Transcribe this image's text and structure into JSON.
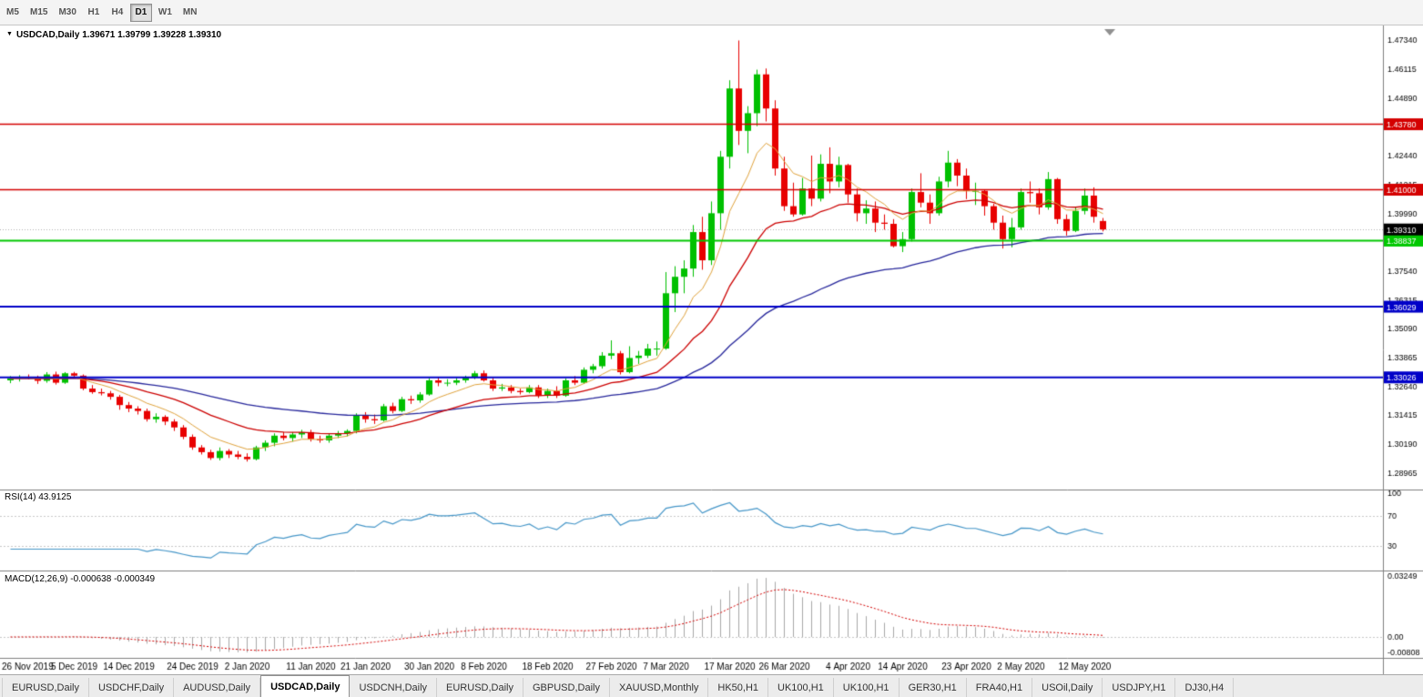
{
  "toolbar": {
    "timeframes": [
      {
        "label": "M5",
        "active": false
      },
      {
        "label": "M15",
        "active": false
      },
      {
        "label": "M30",
        "active": false
      },
      {
        "label": "H1",
        "active": false
      },
      {
        "label": "H4",
        "active": false
      },
      {
        "label": "D1",
        "active": true
      },
      {
        "label": "W1",
        "active": false
      },
      {
        "label": "MN",
        "active": false
      }
    ]
  },
  "chart": {
    "symbol_title": "USDCAD,Daily",
    "ohlc_display": "1.39671 1.39799 1.39228 1.39310"
  },
  "indicators": {
    "rsi_label": "RSI(14) 43.9125",
    "macd_label": "MACD(12,26,9) -0.000638 -0.000349"
  },
  "tabs": {
    "items": [
      {
        "label": "EURUSD,Daily",
        "active": false
      },
      {
        "label": "USDCHF,Daily",
        "active": false
      },
      {
        "label": "AUDUSD,Daily",
        "active": false
      },
      {
        "label": "USDCAD,Daily",
        "active": true
      },
      {
        "label": "USDCNH,Daily",
        "active": false
      },
      {
        "label": "EURUSD,Daily",
        "active": false
      },
      {
        "label": "GBPUSD,Daily",
        "active": false
      },
      {
        "label": "XAUUSD,Monthly",
        "active": false
      },
      {
        "label": "HK50,H1",
        "active": false
      },
      {
        "label": "UK100,H1",
        "active": false
      },
      {
        "label": "UK100,H1",
        "active": false
      },
      {
        "label": "GER30,H1",
        "active": false
      },
      {
        "label": "FRA40,H1",
        "active": false
      },
      {
        "label": "USOil,Daily",
        "active": false
      },
      {
        "label": "USDJPY,H1",
        "active": false
      },
      {
        "label": "DJ30,H4",
        "active": false
      }
    ]
  },
  "chart_data": {
    "type": "candlestick",
    "symbol": "USDCAD",
    "timeframe": "Daily",
    "ylim": [
      1.283,
      1.479
    ],
    "current_bar": {
      "open": 1.39671,
      "high": 1.39799,
      "low": 1.39228,
      "close": 1.3931
    },
    "current_price": {
      "value": 1.3931,
      "label": "1.39310",
      "bg": "#000000"
    },
    "price_ticks": [
      "1.47340",
      "1.46115",
      "1.44890",
      "1.43665",
      "1.42440",
      "1.41215",
      "1.39990",
      "1.38765",
      "1.37540",
      "1.36315",
      "1.35090",
      "1.33865",
      "1.32640",
      "1.31415",
      "1.30190",
      "1.28965"
    ],
    "hlines": [
      {
        "price": 1.4378,
        "label": "1.43780",
        "color": "#d40000",
        "width": 1.5
      },
      {
        "price": 1.41,
        "label": "1.41000",
        "color": "#d40000",
        "width": 1.5
      },
      {
        "price": 1.38837,
        "label": "1.38837",
        "color": "#00c800",
        "width": 2
      },
      {
        "price": 1.36029,
        "label": "1.36029",
        "color": "#0000c8",
        "width": 2
      },
      {
        "price": 1.33026,
        "label": "1.33026",
        "color": "#0000c8",
        "width": 2
      }
    ],
    "colors": {
      "up": "#00c000",
      "down": "#e80000",
      "ma_fast": "#e0a33c",
      "ma_med": "#cc0000",
      "ma_slow": "#26269b",
      "rsi": "#4596c8",
      "rsi_level": "#c8c8c8",
      "macd_hist": "#a8a8a8",
      "macd_signal": "#d40000",
      "axis_line": "#808080",
      "bid_line": "#b0b0b0"
    },
    "x_labels": [
      {
        "text": "26 Nov 2019",
        "i": 0
      },
      {
        "text": "5 Dec 2019",
        "i": 7
      },
      {
        "text": "14 Dec 2019",
        "i": 13
      },
      {
        "text": "24 Dec 2019",
        "i": 20
      },
      {
        "text": "2 Jan 2020",
        "i": 26
      },
      {
        "text": "11 Jan 2020",
        "i": 33
      },
      {
        "text": "21 Jan 2020",
        "i": 39
      },
      {
        "text": "30 Jan 2020",
        "i": 46
      },
      {
        "text": "8 Feb 2020",
        "i": 52
      },
      {
        "text": "18 Feb 2020",
        "i": 59
      },
      {
        "text": "27 Feb 2020",
        "i": 66
      },
      {
        "text": "7 Mar 2020",
        "i": 72
      },
      {
        "text": "17 Mar 2020",
        "i": 79
      },
      {
        "text": "26 Mar 2020",
        "i": 85
      },
      {
        "text": "4 Apr 2020",
        "i": 92
      },
      {
        "text": "14 Apr 2020",
        "i": 98
      },
      {
        "text": "23 Apr 2020",
        "i": 105
      },
      {
        "text": "2 May 2020",
        "i": 111
      },
      {
        "text": "12 May 2020",
        "i": 118
      }
    ],
    "rsi_panel": {
      "value": 43.9125,
      "levels": [
        {
          "text": "100",
          "v": 100
        },
        {
          "text": "70",
          "v": 70
        },
        {
          "text": "30",
          "v": 30
        }
      ],
      "dashed": [
        70,
        30
      ]
    },
    "macd_panel": {
      "macd_value": -0.000638,
      "signal_value": -0.000349,
      "scale": [
        {
          "text": "0.03249",
          "v": 0.03249
        },
        {
          "text": "0.00",
          "v": 0
        },
        {
          "text": "-0.00808",
          "v": -0.00808
        }
      ]
    },
    "candles": [
      [
        1.329,
        1.3308,
        1.3278,
        1.3298
      ],
      [
        1.3298,
        1.3312,
        1.3285,
        1.3305
      ],
      [
        1.3305,
        1.3315,
        1.3295,
        1.3302
      ],
      [
        1.3302,
        1.331,
        1.3275,
        1.3288
      ],
      [
        1.3288,
        1.3325,
        1.328,
        1.3315
      ],
      [
        1.3315,
        1.3327,
        1.3272,
        1.328
      ],
      [
        1.328,
        1.3325,
        1.3275,
        1.332
      ],
      [
        1.332,
        1.3326,
        1.3302,
        1.331
      ],
      [
        1.331,
        1.3315,
        1.3248,
        1.3255
      ],
      [
        1.3255,
        1.327,
        1.3233,
        1.324
      ],
      [
        1.324,
        1.3255,
        1.3226,
        1.3235
      ],
      [
        1.3235,
        1.3245,
        1.3208,
        1.322
      ],
      [
        1.322,
        1.3228,
        1.3165,
        1.3185
      ],
      [
        1.3185,
        1.3198,
        1.3155,
        1.317
      ],
      [
        1.317,
        1.318,
        1.3145,
        1.316
      ],
      [
        1.316,
        1.317,
        1.3115,
        1.3125
      ],
      [
        1.3125,
        1.315,
        1.311,
        1.3135
      ],
      [
        1.3135,
        1.3142,
        1.31,
        1.3115
      ],
      [
        1.3115,
        1.3125,
        1.3075,
        1.309
      ],
      [
        1.309,
        1.31,
        1.304,
        1.305
      ],
      [
        1.305,
        1.306,
        1.2995,
        1.3005
      ],
      [
        1.3005,
        1.3015,
        1.2975,
        1.2985
      ],
      [
        1.2985,
        1.2995,
        1.2952,
        1.296
      ],
      [
        1.296,
        1.3005,
        1.295,
        1.299
      ],
      [
        1.299,
        1.2998,
        1.296,
        1.2975
      ],
      [
        1.2975,
        1.299,
        1.2955,
        1.2965
      ],
      [
        1.2965,
        1.298,
        1.2945,
        1.2955
      ],
      [
        1.2955,
        1.3012,
        1.295,
        1.3005
      ],
      [
        1.3005,
        1.3035,
        1.299,
        1.3025
      ],
      [
        1.3025,
        1.3065,
        1.301,
        1.3055
      ],
      [
        1.3055,
        1.307,
        1.3035,
        1.3045
      ],
      [
        1.3045,
        1.307,
        1.303,
        1.306
      ],
      [
        1.306,
        1.308,
        1.3045,
        1.307
      ],
      [
        1.307,
        1.308,
        1.303,
        1.304
      ],
      [
        1.304,
        1.3055,
        1.3025,
        1.3035
      ],
      [
        1.3035,
        1.3065,
        1.3025,
        1.3055
      ],
      [
        1.3055,
        1.3075,
        1.3045,
        1.3065
      ],
      [
        1.3065,
        1.3082,
        1.3052,
        1.3075
      ],
      [
        1.3075,
        1.315,
        1.3065,
        1.314
      ],
      [
        1.314,
        1.3155,
        1.311,
        1.3125
      ],
      [
        1.3125,
        1.3145,
        1.3105,
        1.312
      ],
      [
        1.312,
        1.319,
        1.3115,
        1.318
      ],
      [
        1.318,
        1.3195,
        1.315,
        1.316
      ],
      [
        1.316,
        1.322,
        1.3155,
        1.321
      ],
      [
        1.321,
        1.3225,
        1.319,
        1.3205
      ],
      [
        1.3205,
        1.324,
        1.3195,
        1.323
      ],
      [
        1.323,
        1.33,
        1.3225,
        1.329
      ],
      [
        1.329,
        1.3304,
        1.3265,
        1.328
      ],
      [
        1.328,
        1.3295,
        1.3265,
        1.328
      ],
      [
        1.328,
        1.33,
        1.327,
        1.329
      ],
      [
        1.329,
        1.331,
        1.328,
        1.3305
      ],
      [
        1.3305,
        1.333,
        1.3295,
        1.332
      ],
      [
        1.332,
        1.3332,
        1.3285,
        1.329
      ],
      [
        1.329,
        1.33,
        1.3245,
        1.3255
      ],
      [
        1.3255,
        1.3275,
        1.3245,
        1.326
      ],
      [
        1.326,
        1.327,
        1.3235,
        1.3245
      ],
      [
        1.3245,
        1.3255,
        1.323,
        1.324
      ],
      [
        1.324,
        1.327,
        1.3235,
        1.326
      ],
      [
        1.326,
        1.327,
        1.3215,
        1.3225
      ],
      [
        1.3225,
        1.3255,
        1.3215,
        1.3245
      ],
      [
        1.3245,
        1.3265,
        1.3215,
        1.3225
      ],
      [
        1.3225,
        1.3298,
        1.322,
        1.329
      ],
      [
        1.329,
        1.3308,
        1.327,
        1.328
      ],
      [
        1.328,
        1.3345,
        1.3275,
        1.3335
      ],
      [
        1.3335,
        1.336,
        1.332,
        1.335
      ],
      [
        1.335,
        1.341,
        1.334,
        1.3395
      ],
      [
        1.3395,
        1.346,
        1.338,
        1.3405
      ],
      [
        1.3405,
        1.3415,
        1.3315,
        1.3325
      ],
      [
        1.3325,
        1.3435,
        1.332,
        1.3385
      ],
      [
        1.3385,
        1.3415,
        1.336,
        1.3395
      ],
      [
        1.3395,
        1.3445,
        1.3385,
        1.3425
      ],
      [
        1.3425,
        1.3455,
        1.3395,
        1.3425
      ],
      [
        1.3425,
        1.375,
        1.342,
        1.366
      ],
      [
        1.366,
        1.3775,
        1.358,
        1.373
      ],
      [
        1.373,
        1.38,
        1.366,
        1.3765
      ],
      [
        1.3765,
        1.395,
        1.373,
        1.392
      ],
      [
        1.392,
        1.3985,
        1.376,
        1.38
      ],
      [
        1.38,
        1.405,
        1.378,
        1.4
      ],
      [
        1.4,
        1.4265,
        1.393,
        1.424
      ],
      [
        1.424,
        1.4565,
        1.419,
        1.453
      ],
      [
        1.453,
        1.4734,
        1.429,
        1.435
      ],
      [
        1.435,
        1.4455,
        1.4255,
        1.4425
      ],
      [
        1.4425,
        1.461,
        1.437,
        1.459
      ],
      [
        1.459,
        1.4615,
        1.439,
        1.4445
      ],
      [
        1.4445,
        1.448,
        1.416,
        1.419
      ],
      [
        1.419,
        1.424,
        1.401,
        1.403
      ],
      [
        1.403,
        1.413,
        1.3985,
        1.3995
      ],
      [
        1.3995,
        1.415,
        1.399,
        1.4105
      ],
      [
        1.4105,
        1.4245,
        1.403,
        1.4062
      ],
      [
        1.4062,
        1.425,
        1.405,
        1.421
      ],
      [
        1.421,
        1.428,
        1.4085,
        1.4135
      ],
      [
        1.4135,
        1.424,
        1.411,
        1.4205
      ],
      [
        1.4205,
        1.421,
        1.4045,
        1.408
      ],
      [
        1.408,
        1.4105,
        1.3965,
        1.4
      ],
      [
        1.4,
        1.4055,
        1.3955,
        1.402
      ],
      [
        1.402,
        1.405,
        1.392,
        1.396
      ],
      [
        1.396,
        1.3995,
        1.393,
        1.3955
      ],
      [
        1.3955,
        1.3975,
        1.3855,
        1.386
      ],
      [
        1.386,
        1.392,
        1.3835,
        1.389
      ],
      [
        1.389,
        1.4105,
        1.388,
        1.409
      ],
      [
        1.409,
        1.417,
        1.4025,
        1.4045
      ],
      [
        1.4045,
        1.408,
        1.3955,
        1.4
      ],
      [
        1.4,
        1.4155,
        1.399,
        1.4135
      ],
      [
        1.4135,
        1.4265,
        1.411,
        1.4215
      ],
      [
        1.4215,
        1.423,
        1.4115,
        1.416
      ],
      [
        1.416,
        1.419,
        1.406,
        1.4095
      ],
      [
        1.4095,
        1.413,
        1.4035,
        1.4095
      ],
      [
        1.4095,
        1.41,
        1.399,
        1.403
      ],
      [
        1.403,
        1.404,
        1.393,
        1.396
      ],
      [
        1.396,
        1.399,
        1.385,
        1.389
      ],
      [
        1.389,
        1.398,
        1.3855,
        1.394
      ],
      [
        1.394,
        1.4105,
        1.393,
        1.409
      ],
      [
        1.409,
        1.4135,
        1.4045,
        1.4085
      ],
      [
        1.4085,
        1.4105,
        1.3995,
        1.4025
      ],
      [
        1.4025,
        1.4175,
        1.4015,
        1.4145
      ],
      [
        1.4145,
        1.415,
        1.3955,
        1.3975
      ],
      [
        1.3975,
        1.3995,
        1.3905,
        1.3925
      ],
      [
        1.3925,
        1.4025,
        1.392,
        1.401
      ],
      [
        1.401,
        1.4105,
        1.3995,
        1.4075
      ],
      [
        1.4075,
        1.411,
        1.396,
        1.3985
      ],
      [
        1.39671,
        1.39799,
        1.39228,
        1.3931
      ]
    ]
  }
}
